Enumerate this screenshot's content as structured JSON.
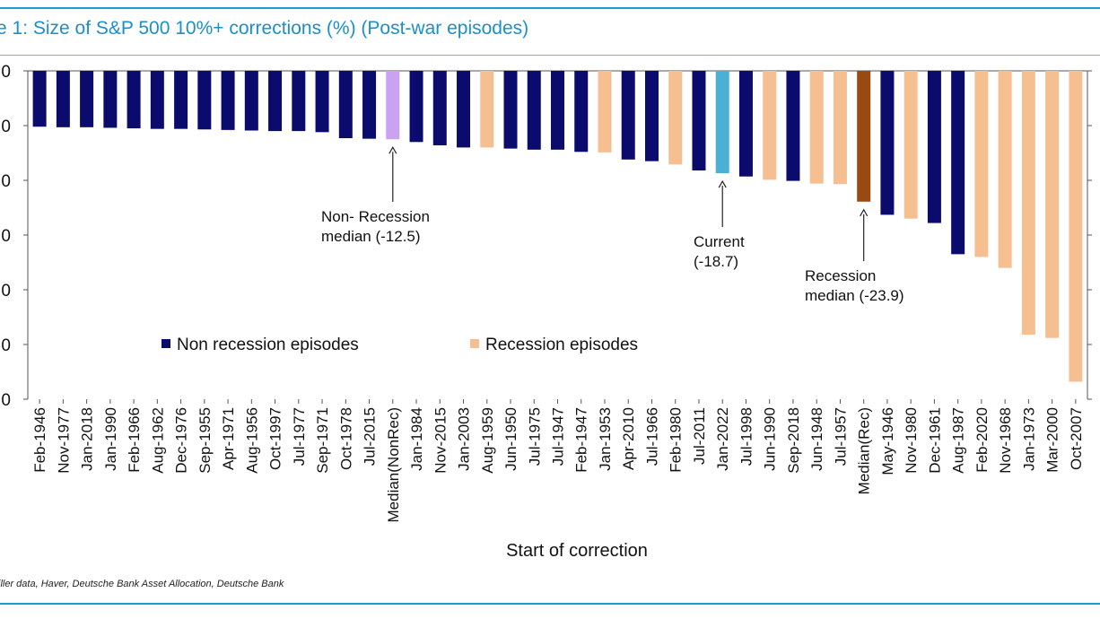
{
  "header": {
    "title": "e 1: Size of S&P 500 10%+ corrections (%) (Post-war episodes)"
  },
  "footer": {
    "source": "iller data, Haver, Deutsche Bank Asset Allocation, Deutsche Bank"
  },
  "colors": {
    "accent": "#1f9ad1",
    "non_recession": "#0b0b6e",
    "recession": "#f6bf92",
    "median_nonrec": "#c9a2f2",
    "current": "#4bb0d3",
    "median_rec": "#9a4a10"
  },
  "chart_data": {
    "type": "bar",
    "xlabel": "Start of correction",
    "ylabel": "",
    "ylim": [
      -60,
      0
    ],
    "ytick_labels": [
      "0",
      "0",
      "0",
      "0",
      "0",
      "0",
      "0"
    ],
    "categories": [
      "Feb-1946",
      "Nov-1977",
      "Jan-2018",
      "Jan-1990",
      "Feb-1966",
      "Aug-1962",
      "Dec-1976",
      "Sep-1955",
      "Apr-1971",
      "Aug-1956",
      "Oct-1997",
      "Jul-1977",
      "Sep-1971",
      "Oct-1978",
      "Jul-2015",
      "Median(NonRec)",
      "Jan-1984",
      "Nov-2015",
      "Jan-2003",
      "Aug-1959",
      "Jun-1950",
      "Jul-1975",
      "Jul-1947",
      "Feb-1947",
      "Jan-1953",
      "Apr-2010",
      "Jul-1966",
      "Feb-1980",
      "Jul-2011",
      "Jan-2022",
      "Jul-1998",
      "Jun-1990",
      "Sep-2018",
      "Jun-1948",
      "Jul-1957",
      "Median(Rec)",
      "May-1946",
      "Nov-1980",
      "Dec-1961",
      "Aug-1987",
      "Feb-2020",
      "Nov-1968",
      "Jan-1973",
      "Mar-2000",
      "Oct-2007"
    ],
    "values": [
      -10.2,
      -10.3,
      -10.3,
      -10.4,
      -10.5,
      -10.6,
      -10.6,
      -10.7,
      -10.8,
      -10.9,
      -11.0,
      -11.0,
      -11.2,
      -12.3,
      -12.4,
      -12.5,
      -13.0,
      -13.6,
      -14.0,
      -14.0,
      -14.2,
      -14.4,
      -14.4,
      -14.8,
      -14.9,
      -16.2,
      -16.5,
      -17.1,
      -18.2,
      -18.7,
      -19.3,
      -19.9,
      -20.1,
      -20.6,
      -20.7,
      -23.9,
      -26.3,
      -27.0,
      -27.8,
      -33.5,
      -34.0,
      -36.0,
      -48.2,
      -48.8,
      -56.8
    ],
    "categories_type": [
      "non_recession",
      "non_recession",
      "non_recession",
      "non_recession",
      "non_recession",
      "non_recession",
      "non_recession",
      "non_recession",
      "non_recession",
      "non_recession",
      "non_recession",
      "non_recession",
      "non_recession",
      "non_recession",
      "non_recession",
      "median_nonrec",
      "non_recession",
      "non_recession",
      "non_recession",
      "recession",
      "non_recession",
      "non_recession",
      "non_recession",
      "non_recession",
      "recession",
      "non_recession",
      "non_recession",
      "recession",
      "non_recession",
      "current",
      "non_recession",
      "recession",
      "non_recession",
      "recession",
      "recession",
      "median_rec",
      "non_recession",
      "recession",
      "non_recession",
      "non_recession",
      "recession",
      "recession",
      "recession",
      "recession",
      "recession"
    ],
    "legend": {
      "placement": "center",
      "entries": [
        {
          "name": "Non recession episodes",
          "type": "non_recession"
        },
        {
          "name": "Recession episodes",
          "type": "recession"
        }
      ]
    },
    "annotations": [
      {
        "target": "Median(NonRec)",
        "lines": [
          "Non- Recession",
          "median (-12.5)"
        ]
      },
      {
        "target": "Jan-2022",
        "lines": [
          "Current",
          "(-18.7)"
        ]
      },
      {
        "target": "Median(Rec)",
        "lines": [
          "Recession",
          "median (-23.9)"
        ]
      }
    ],
    "grid": false
  }
}
